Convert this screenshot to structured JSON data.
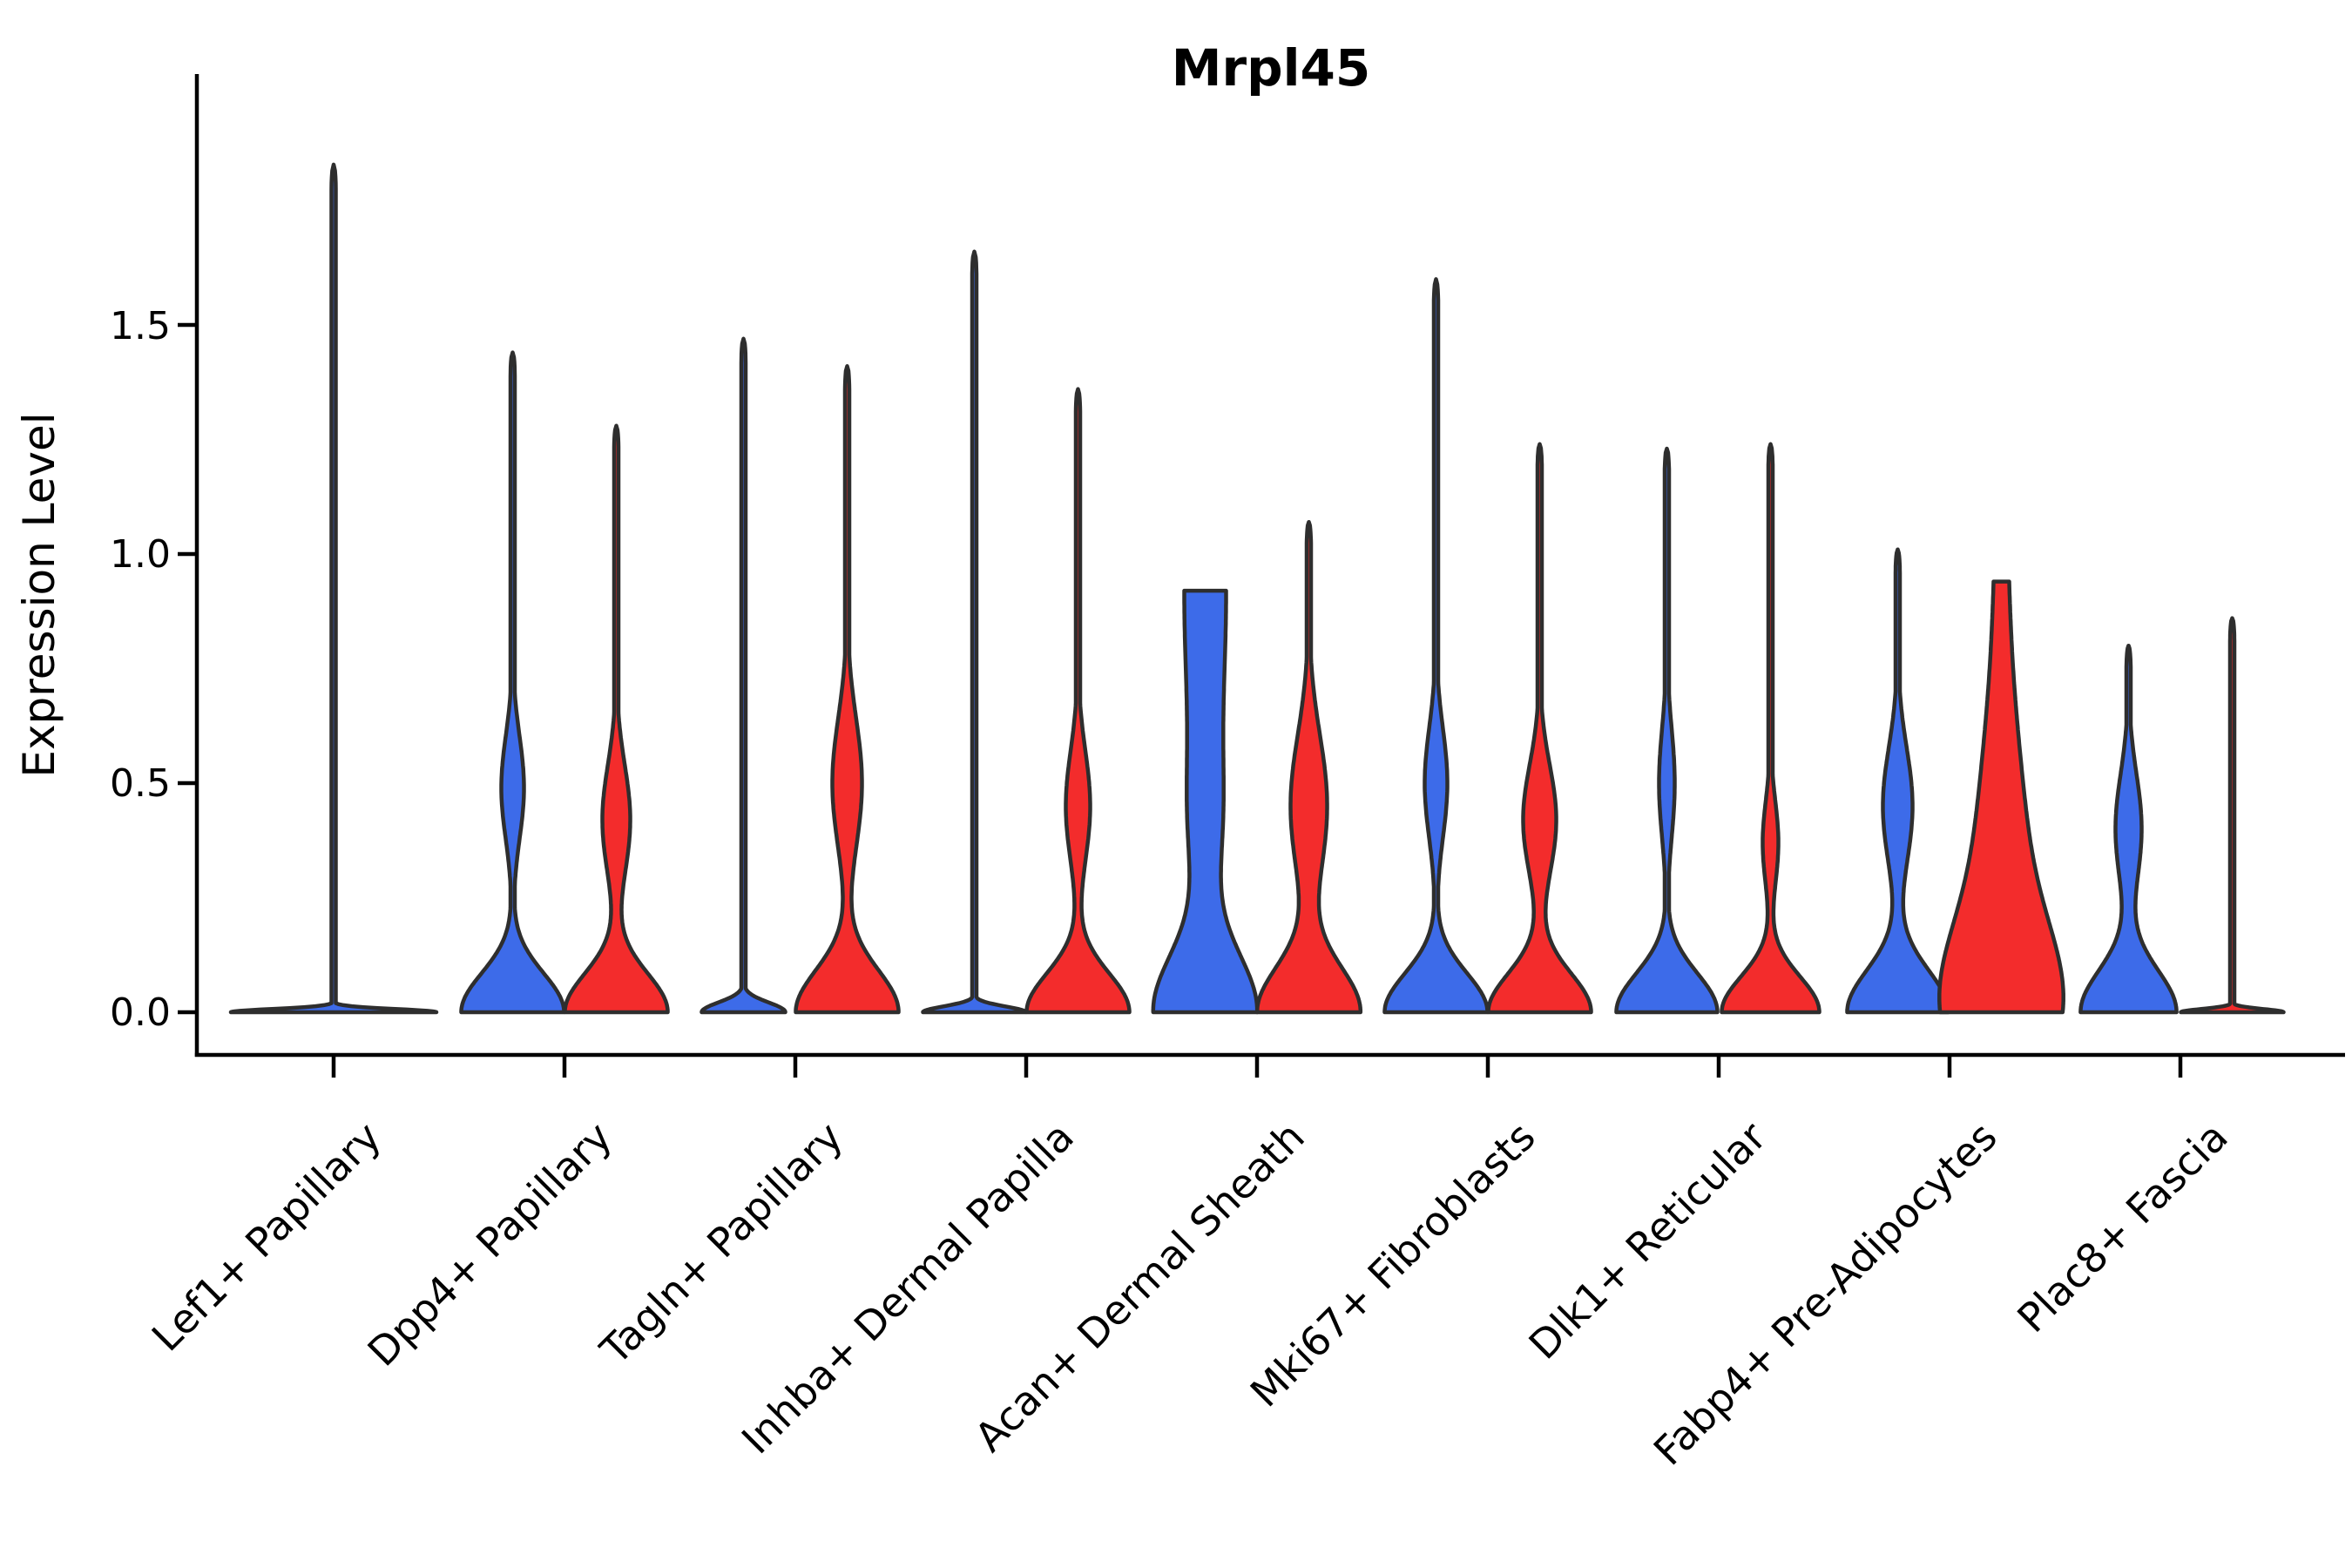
{
  "page": {
    "title": "Mrpl45"
  },
  "chart_data": {
    "type": "violin",
    "title": "Mrpl45",
    "xlabel": "",
    "ylabel": "Expression Level",
    "ytick_labels": [
      "0.0",
      "0.5",
      "1.0",
      "1.5"
    ],
    "ytick_values": [
      0.0,
      0.5,
      1.0,
      1.5
    ],
    "ylim": [
      -0.09,
      2.05
    ],
    "grid": false,
    "legend": "none",
    "categories": [
      "Lef1+ Papillary",
      "Dpp4+ Papillary",
      "Tagln+ Papillary",
      "Inhba+ Dermal Papilla",
      "Acan+ Dermal Sheath",
      "Mki67+ Fibroblasts",
      "Dlk1+ Reticular",
      "Fabp4+ Pre-Adipocytes",
      "Plac8+ Fascia"
    ],
    "colors": {
      "blue": "#3d6be9",
      "red": "#f32c2c",
      "outline": "#2e2e2e"
    },
    "violins": [
      {
        "category_index": 0,
        "category": "Lef1+ Papillary",
        "position": "center",
        "color_key": "blue",
        "max": 1.85,
        "base_hw": 118,
        "base_h": 0.01,
        "bulges": [],
        "top": "spike",
        "note": "flat at zero with single thin spike"
      },
      {
        "category_index": 1,
        "category": "Dpp4+ Papillary",
        "position": "left",
        "color_key": "blue",
        "max": 1.44,
        "base_hw": 59,
        "base_h": 0.12,
        "bulges": [
          {
            "c": 0.49,
            "s": 0.16,
            "hw": 13
          }
        ],
        "top": "spike"
      },
      {
        "category_index": 1,
        "category": "Dpp4+ Papillary",
        "position": "right",
        "color_key": "red",
        "max": 1.28,
        "base_hw": 59,
        "base_h": 0.12,
        "bulges": [
          {
            "c": 0.42,
            "s": 0.17,
            "hw": 16
          }
        ],
        "top": "spike"
      },
      {
        "category_index": 2,
        "category": "Tagln+ Papillary",
        "position": "left",
        "color_key": "blue",
        "max": 1.47,
        "base_hw": 48,
        "base_h": 0.03,
        "bulges": [],
        "top": "spike"
      },
      {
        "category_index": 2,
        "category": "Tagln+ Papillary",
        "position": "right",
        "color_key": "red",
        "max": 1.41,
        "base_hw": 59,
        "base_h": 0.13,
        "bulges": [
          {
            "c": 0.5,
            "s": 0.2,
            "hw": 17
          }
        ],
        "top": "spike"
      },
      {
        "category_index": 3,
        "category": "Inhba+ Dermal Papilla",
        "position": "left",
        "color_key": "blue",
        "max": 1.66,
        "base_hw": 59,
        "base_h": 0.018,
        "bulges": [],
        "top": "spike"
      },
      {
        "category_index": 3,
        "category": "Inhba+ Dermal Papilla",
        "position": "right",
        "color_key": "red",
        "max": 1.36,
        "base_hw": 59,
        "base_h": 0.12,
        "bulges": [
          {
            "c": 0.45,
            "s": 0.17,
            "hw": 14
          }
        ],
        "top": "spike"
      },
      {
        "category_index": 4,
        "category": "Acan+ Dermal Sheath",
        "position": "left",
        "color_key": "blue",
        "max": 0.92,
        "base_hw": 58,
        "base_h": 0.18,
        "bulges": [
          {
            "c": 0.4,
            "s": 0.2,
            "hw": 10
          }
        ],
        "top": "blunt",
        "top_hw": 24,
        "top_s": 0.55
      },
      {
        "category_index": 4,
        "category": "Acan+ Dermal Sheath",
        "position": "right",
        "color_key": "red",
        "max": 1.07,
        "base_hw": 59,
        "base_h": 0.14,
        "bulges": [
          {
            "c": 0.45,
            "s": 0.22,
            "hw": 21
          }
        ],
        "top": "spike"
      },
      {
        "category_index": 5,
        "category": "Mki67+ Fibroblasts",
        "position": "left",
        "color_key": "blue",
        "max": 1.6,
        "base_hw": 59,
        "base_h": 0.12,
        "bulges": [
          {
            "c": 0.5,
            "s": 0.17,
            "hw": 13
          }
        ],
        "top": "spike"
      },
      {
        "category_index": 5,
        "category": "Mki67+ Fibroblasts",
        "position": "right",
        "color_key": "red",
        "max": 1.24,
        "base_hw": 59,
        "base_h": 0.12,
        "bulges": [
          {
            "c": 0.42,
            "s": 0.17,
            "hw": 19
          }
        ],
        "top": "spike"
      },
      {
        "category_index": 6,
        "category": "Dlk1+ Reticular",
        "position": "left",
        "color_key": "blue",
        "max": 1.23,
        "base_hw": 58,
        "base_h": 0.12,
        "bulges": [
          {
            "c": 0.5,
            "s": 0.17,
            "hw": 9
          }
        ],
        "top": "spike"
      },
      {
        "category_index": 6,
        "category": "Dlk1+ Reticular",
        "position": "right",
        "color_key": "red",
        "max": 1.24,
        "base_hw": 56,
        "base_h": 0.11,
        "bulges": [
          {
            "c": 0.37,
            "s": 0.13,
            "hw": 9
          }
        ],
        "top": "spike"
      },
      {
        "category_index": 7,
        "category": "Fabp4+ Pre-Adipocytes",
        "position": "left",
        "color_key": "blue",
        "max": 1.01,
        "base_hw": 58,
        "base_h": 0.13,
        "bulges": [
          {
            "c": 0.45,
            "s": 0.18,
            "hw": 17
          }
        ],
        "top": "spike"
      },
      {
        "category_index": 7,
        "category": "Fabp4+ Pre-Adipocytes",
        "position": "right",
        "color_key": "red",
        "max": 0.94,
        "base_hw": 58,
        "base_h": 0.25,
        "bulges": [
          {
            "c": 0.33,
            "s": 0.38,
            "hw": 26
          }
        ],
        "top": "blunt",
        "top_hw": 7,
        "top_s": 0.45
      },
      {
        "category_index": 8,
        "category": "Plac8+ Fascia",
        "position": "left",
        "color_key": "blue",
        "max": 0.8,
        "base_hw": 55,
        "base_h": 0.13,
        "bulges": [
          {
            "c": 0.4,
            "s": 0.17,
            "hw": 15
          }
        ],
        "top": "spike"
      },
      {
        "category_index": 8,
        "category": "Plac8+ Fascia",
        "position": "right",
        "color_key": "red",
        "max": 0.86,
        "base_hw": 59,
        "base_h": 0.01,
        "bulges": [],
        "top": "spike",
        "note": "flat at zero with single thin spike"
      }
    ]
  }
}
